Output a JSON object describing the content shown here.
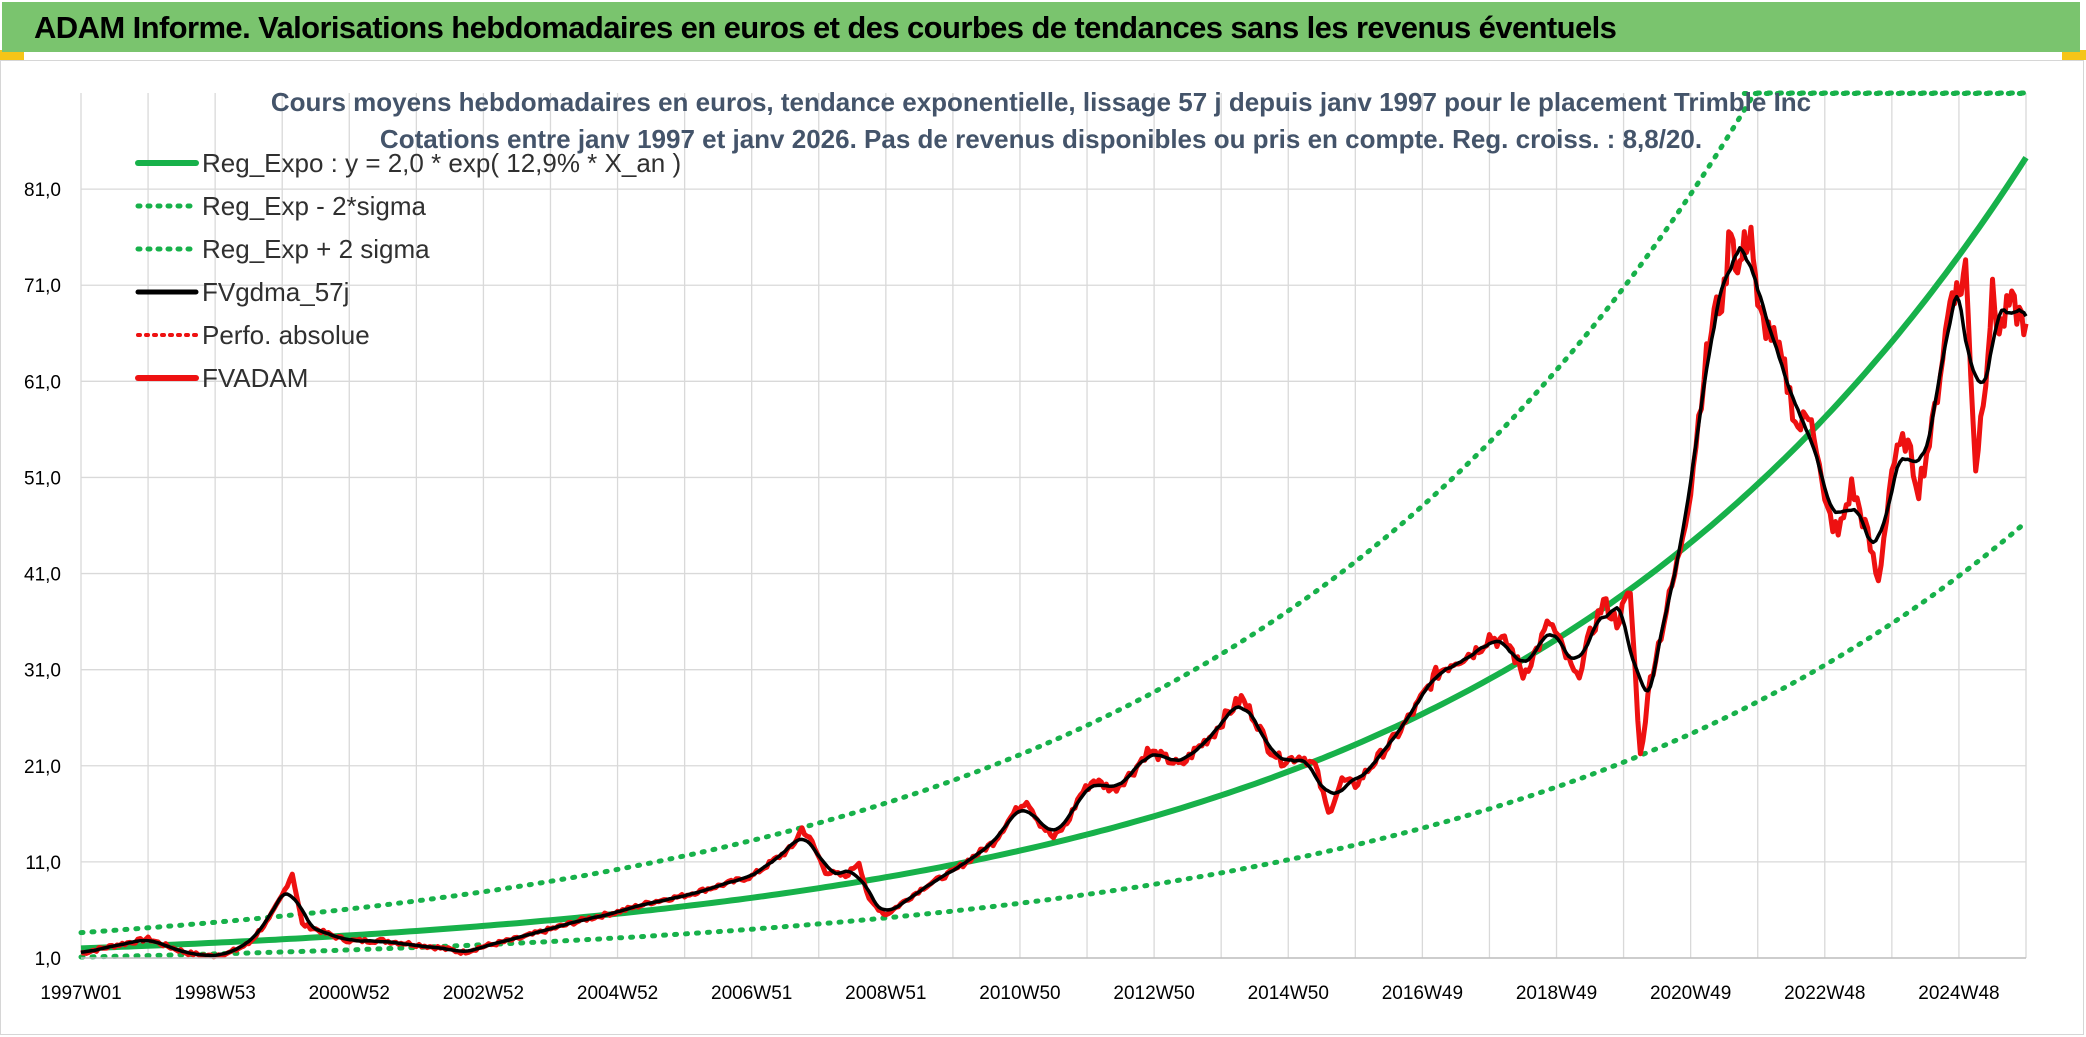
{
  "header": {
    "title": "ADAM Informe. Valorisations hebdomadaires en euros et des courbes de tendances sans les revenus éventuels"
  },
  "colors": {
    "banner": "#7ac46e",
    "corner": "#f5c518",
    "reg_expo": "#17b14a",
    "sigma": "#17b14a",
    "fvgdma": "#000000",
    "fvadam": "#ee1111",
    "perfo": "#ee1111",
    "title_text": "#44546a",
    "grid": "#d9d9d9"
  },
  "chart_data": {
    "type": "line",
    "title": "Cours moyens hebdomadaires en euros, tendance exponentielle, lissage 57 j depuis janv 1997 pour le placement Trimble Inc",
    "subtitle": "Cotations entre janv 1997 et janv 2026. Pas de revenus disponibles ou pris en compte. Reg. croiss. : 8,8/20.",
    "xlabel": "",
    "ylabel": "",
    "x_tick_labels": [
      "1997W01",
      "1998W53",
      "2000W52",
      "2002W52",
      "2004W52",
      "2006W51",
      "2008W51",
      "2010W50",
      "2012W50",
      "2014W50",
      "2016W49",
      "2018W49",
      "2020W49",
      "2022W48",
      "2024W48"
    ],
    "x_range_years": [
      1997.0,
      2026.0
    ],
    "y_tick_labels": [
      "1,0",
      "11,0",
      "21,0",
      "31,0",
      "41,0",
      "51,0",
      "61,0",
      "71,0",
      "81,0"
    ],
    "ylim": [
      1,
      91
    ],
    "grid": true,
    "legend_position": "top-left",
    "series": [
      {
        "name": "Reg_Expo : y = 2,0 * exp( 12,9% *  X_an )",
        "kind": "trend",
        "style": "solid",
        "formula": {
          "a": 2.0,
          "rate": 0.129,
          "x0": 1997.0
        }
      },
      {
        "name": "Reg_Exp - 2*sigma",
        "kind": "trend",
        "style": "dotted",
        "formula": {
          "a": 1.1,
          "rate": 0.129,
          "x0": 1997.0
        }
      },
      {
        "name": "Reg_Exp + 2 sigma",
        "kind": "trend",
        "style": "dotted",
        "formula": {
          "a": 3.64,
          "rate": 0.129,
          "x0": 1997.0
        }
      },
      {
        "name": "FVgdma_57j",
        "kind": "smoothed",
        "style": "solid"
      },
      {
        "name": "Perfo. absolue",
        "kind": "reference",
        "style": "dotted"
      },
      {
        "name": "FVADAM",
        "kind": "price",
        "style": "solid",
        "points": [
          [
            1997.0,
            1.5
          ],
          [
            1997.5,
            2.3
          ],
          [
            1998.0,
            3.0
          ],
          [
            1998.3,
            2.2
          ],
          [
            1998.6,
            1.5
          ],
          [
            1998.9,
            1.2
          ],
          [
            1999.2,
            1.5
          ],
          [
            1999.5,
            2.5
          ],
          [
            1999.8,
            5.0
          ],
          [
            2000.0,
            7.5
          ],
          [
            2000.15,
            9.8
          ],
          [
            2000.3,
            4.5
          ],
          [
            2000.5,
            4.0
          ],
          [
            2000.8,
            3.2
          ],
          [
            2001.0,
            2.8
          ],
          [
            2001.5,
            2.8
          ],
          [
            2002.0,
            2.4
          ],
          [
            2002.4,
            2.0
          ],
          [
            2002.7,
            1.6
          ],
          [
            2003.0,
            2.2
          ],
          [
            2003.5,
            3.0
          ],
          [
            2004.0,
            4.0
          ],
          [
            2004.5,
            5.0
          ],
          [
            2005.0,
            5.8
          ],
          [
            2005.5,
            6.8
          ],
          [
            2006.0,
            7.5
          ],
          [
            2006.5,
            8.5
          ],
          [
            2007.0,
            9.5
          ],
          [
            2007.3,
            11.0
          ],
          [
            2007.6,
            12.5
          ],
          [
            2007.75,
            14.5
          ],
          [
            2007.9,
            13.0
          ],
          [
            2008.1,
            10.0
          ],
          [
            2008.4,
            9.5
          ],
          [
            2008.6,
            11.0
          ],
          [
            2008.75,
            7.0
          ],
          [
            2009.0,
            5.5
          ],
          [
            2009.3,
            7.0
          ],
          [
            2009.6,
            8.5
          ],
          [
            2010.0,
            10.0
          ],
          [
            2010.3,
            11.5
          ],
          [
            2010.6,
            13.0
          ],
          [
            2010.9,
            16.0
          ],
          [
            2011.1,
            17.5
          ],
          [
            2011.3,
            15.0
          ],
          [
            2011.5,
            13.5
          ],
          [
            2011.7,
            15.0
          ],
          [
            2011.9,
            18.0
          ],
          [
            2012.1,
            19.5
          ],
          [
            2012.4,
            18.5
          ],
          [
            2012.7,
            20.5
          ],
          [
            2012.9,
            22.5
          ],
          [
            2013.1,
            22.0
          ],
          [
            2013.4,
            21.0
          ],
          [
            2013.6,
            22.5
          ],
          [
            2013.9,
            24.5
          ],
          [
            2014.1,
            26.5
          ],
          [
            2014.3,
            28.0
          ],
          [
            2014.5,
            26.0
          ],
          [
            2014.7,
            23.0
          ],
          [
            2014.9,
            21.5
          ],
          [
            2015.2,
            22.0
          ],
          [
            2015.4,
            21.0
          ],
          [
            2015.6,
            16.0
          ],
          [
            2015.8,
            19.5
          ],
          [
            2016.0,
            19.0
          ],
          [
            2016.3,
            21.5
          ],
          [
            2016.6,
            24.0
          ],
          [
            2016.9,
            27.0
          ],
          [
            2017.2,
            30.5
          ],
          [
            2017.5,
            32.0
          ],
          [
            2017.8,
            33.0
          ],
          [
            2018.0,
            34.5
          ],
          [
            2018.3,
            33.5
          ],
          [
            2018.5,
            30.5
          ],
          [
            2018.7,
            33.0
          ],
          [
            2018.9,
            36.0
          ],
          [
            2019.1,
            33.0
          ],
          [
            2019.3,
            30.0
          ],
          [
            2019.5,
            34.5
          ],
          [
            2019.7,
            38.0
          ],
          [
            2019.9,
            36.0
          ],
          [
            2020.1,
            39.0
          ],
          [
            2020.25,
            22.0
          ],
          [
            2020.4,
            30.0
          ],
          [
            2020.6,
            36.0
          ],
          [
            2020.8,
            42.0
          ],
          [
            2021.0,
            50.0
          ],
          [
            2021.2,
            62.0
          ],
          [
            2021.35,
            68.0
          ],
          [
            2021.5,
            70.0
          ],
          [
            2021.6,
            78.0
          ],
          [
            2021.7,
            72.0
          ],
          [
            2021.8,
            75.0
          ],
          [
            2021.9,
            77.0
          ],
          [
            2022.0,
            68.0
          ],
          [
            2022.2,
            66.0
          ],
          [
            2022.4,
            62.0
          ],
          [
            2022.6,
            56.0
          ],
          [
            2022.8,
            58.0
          ],
          [
            2023.0,
            48.0
          ],
          [
            2023.2,
            45.0
          ],
          [
            2023.4,
            50.0
          ],
          [
            2023.6,
            46.0
          ],
          [
            2023.8,
            40.0
          ],
          [
            2024.0,
            52.0
          ],
          [
            2024.2,
            55.0
          ],
          [
            2024.4,
            50.0
          ],
          [
            2024.6,
            56.0
          ],
          [
            2024.8,
            66.0
          ],
          [
            2024.9,
            71.0
          ],
          [
            2025.0,
            70.0
          ],
          [
            2025.1,
            73.0
          ],
          [
            2025.25,
            52.0
          ],
          [
            2025.4,
            62.0
          ],
          [
            2025.5,
            70.0
          ],
          [
            2025.6,
            66.0
          ],
          [
            2025.75,
            69.0
          ],
          [
            2025.9,
            68.0
          ],
          [
            2026.0,
            67.0
          ]
        ]
      }
    ]
  }
}
